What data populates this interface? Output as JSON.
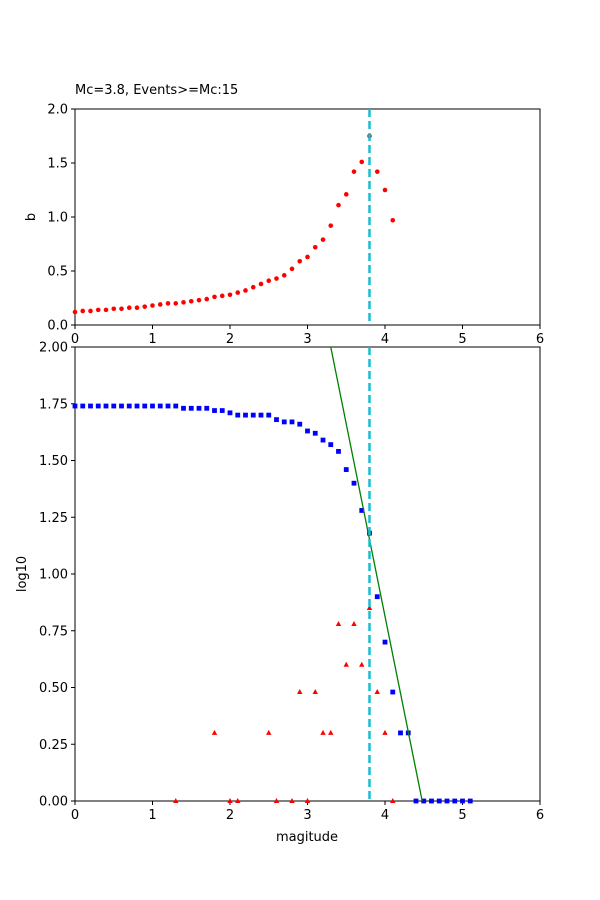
{
  "figure_title": "Mc=3.8, Events>=Mc:15",
  "colors": {
    "b_points": "#ff0000",
    "cumulative": "#0000ff",
    "noncumulative": "#ff0000",
    "fit_line": "#008000",
    "mc_line": "#17becf"
  },
  "chart_data": [
    {
      "type": "scatter",
      "title": "Mc=3.8, Events>=Mc:15",
      "xlabel": "",
      "ylabel": "b",
      "xlim": [
        0,
        6
      ],
      "ylim": [
        0,
        2.0
      ],
      "xticks": [
        "0",
        "1",
        "2",
        "3",
        "4",
        "5",
        "6"
      ],
      "yticks": [
        "0.0",
        "0.5",
        "1.0",
        "1.5",
        "2.0"
      ],
      "grid": false,
      "vline": {
        "x": 3.8,
        "style": "dashed"
      },
      "series": [
        {
          "marker": "circle",
          "x": [
            0.0,
            0.1,
            0.2,
            0.3,
            0.4,
            0.5,
            0.6,
            0.7,
            0.8,
            0.9,
            1.0,
            1.1,
            1.2,
            1.3,
            1.4,
            1.5,
            1.6,
            1.7,
            1.8,
            1.9,
            2.0,
            2.1,
            2.2,
            2.3,
            2.4,
            2.5,
            2.6,
            2.7,
            2.8,
            2.9,
            3.0,
            3.1,
            3.2,
            3.3,
            3.4,
            3.5,
            3.6,
            3.7,
            3.8,
            3.9,
            4.0,
            4.1
          ],
          "y": [
            0.12,
            0.13,
            0.13,
            0.14,
            0.14,
            0.15,
            0.15,
            0.16,
            0.16,
            0.17,
            0.18,
            0.19,
            0.2,
            0.2,
            0.21,
            0.22,
            0.23,
            0.24,
            0.26,
            0.27,
            0.28,
            0.3,
            0.32,
            0.35,
            0.38,
            0.41,
            0.43,
            0.46,
            0.52,
            0.59,
            0.63,
            0.72,
            0.79,
            0.92,
            1.11,
            1.21,
            1.42,
            1.51,
            1.75,
            1.42,
            1.25,
            0.97
          ]
        }
      ]
    },
    {
      "type": "scatter",
      "title": "",
      "xlabel": "magitude",
      "ylabel": "log10",
      "xlim": [
        0,
        6
      ],
      "ylim": [
        0,
        2.0
      ],
      "xticks": [
        "0",
        "1",
        "2",
        "3",
        "4",
        "5",
        "6"
      ],
      "yticks": [
        "0.00",
        "0.25",
        "0.50",
        "0.75",
        "1.00",
        "1.25",
        "1.50",
        "1.75",
        "2.00"
      ],
      "grid": false,
      "vline": {
        "x": 3.8,
        "style": "dashed"
      },
      "fit_line": {
        "x": [
          3.3,
          4.48
        ],
        "y": [
          2.0,
          0.0
        ]
      },
      "series": [
        {
          "marker": "square",
          "x": [
            0.0,
            0.1,
            0.2,
            0.3,
            0.4,
            0.5,
            0.6,
            0.7,
            0.8,
            0.9,
            1.0,
            1.1,
            1.2,
            1.3,
            1.4,
            1.5,
            1.6,
            1.7,
            1.8,
            1.9,
            2.0,
            2.1,
            2.2,
            2.3,
            2.4,
            2.5,
            2.6,
            2.7,
            2.8,
            2.9,
            3.0,
            3.1,
            3.2,
            3.3,
            3.4,
            3.5,
            3.6,
            3.7,
            3.8,
            3.9,
            4.0,
            4.1,
            4.2,
            4.3,
            4.4,
            4.5,
            4.6,
            4.7,
            4.8,
            4.9,
            5.0,
            5.1
          ],
          "y": [
            1.74,
            1.74,
            1.74,
            1.74,
            1.74,
            1.74,
            1.74,
            1.74,
            1.74,
            1.74,
            1.74,
            1.74,
            1.74,
            1.74,
            1.73,
            1.73,
            1.73,
            1.73,
            1.72,
            1.72,
            1.71,
            1.7,
            1.7,
            1.7,
            1.7,
            1.7,
            1.68,
            1.67,
            1.67,
            1.66,
            1.63,
            1.62,
            1.59,
            1.57,
            1.54,
            1.46,
            1.4,
            1.28,
            1.18,
            0.9,
            0.7,
            0.48,
            0.3,
            0.3,
            0.0,
            0.0,
            0.0,
            0.0,
            0.0,
            0.0,
            0.0,
            0.0
          ]
        },
        {
          "marker": "triangle",
          "x": [
            1.3,
            1.8,
            2.0,
            2.1,
            2.5,
            2.6,
            2.8,
            2.9,
            3.0,
            3.1,
            3.2,
            3.3,
            3.4,
            3.5,
            3.6,
            3.7,
            3.8,
            3.9,
            4.0,
            4.1
          ],
          "y": [
            0.0,
            0.3,
            0.0,
            0.0,
            0.3,
            0.0,
            0.0,
            0.48,
            0.0,
            0.48,
            0.3,
            0.3,
            0.78,
            0.6,
            0.78,
            0.6,
            0.85,
            0.48,
            0.3,
            0.0
          ]
        }
      ]
    }
  ]
}
